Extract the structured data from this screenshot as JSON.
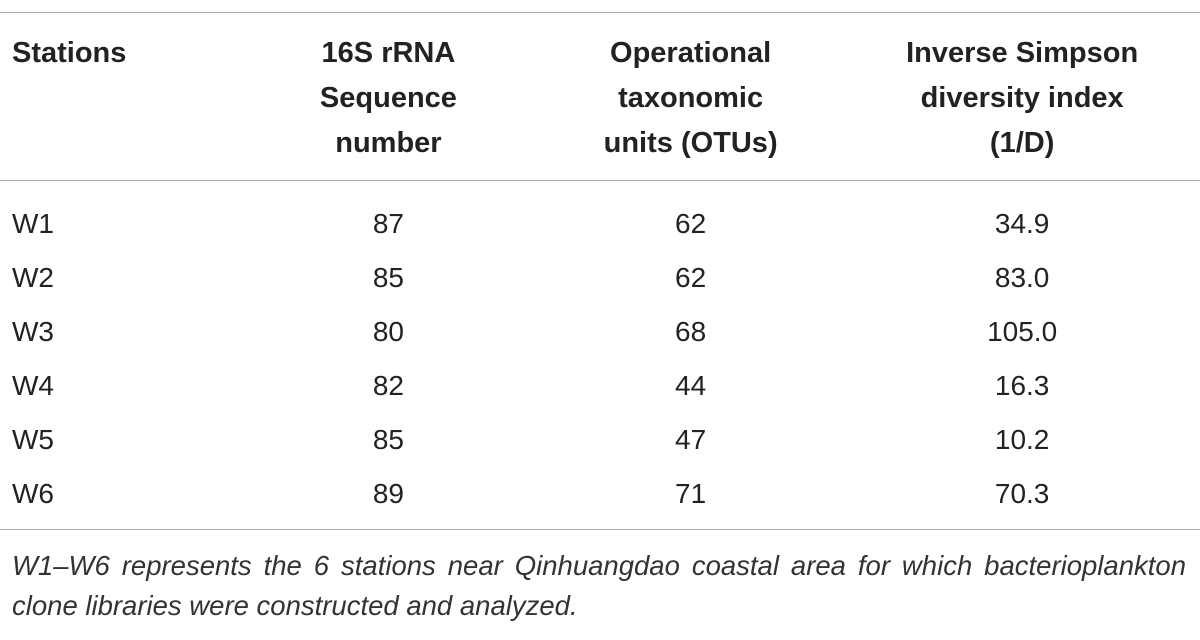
{
  "table": {
    "headers": [
      [
        "Stations"
      ],
      [
        "16S rRNA",
        "Sequence",
        "number"
      ],
      [
        "Operational",
        "taxonomic",
        "units (OTUs)"
      ],
      [
        "Inverse Simpson",
        "diversity index",
        "(1/D)"
      ]
    ],
    "rows": [
      [
        "W1",
        "87",
        "62",
        "34.9"
      ],
      [
        "W2",
        "85",
        "62",
        "83.0"
      ],
      [
        "W3",
        "80",
        "68",
        "105.0"
      ],
      [
        "W4",
        "82",
        "44",
        "16.3"
      ],
      [
        "W5",
        "85",
        "47",
        "10.2"
      ],
      [
        "W6",
        "89",
        "71",
        "70.3"
      ]
    ],
    "footnote": "W1–W6 represents the 6 stations near Qinhuangdao coastal area for which bacterioplankton clone libraries were constructed and analyzed."
  }
}
